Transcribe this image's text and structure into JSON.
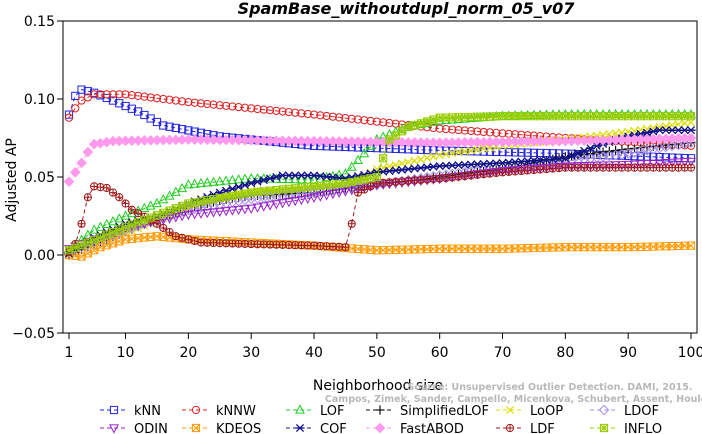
{
  "chart_data": {
    "type": "line",
    "title": "SpamBase_withoutdupl_norm_05_v07",
    "xlabel": "Neighborhood size",
    "ylabel": "Adjusted AP",
    "xlim": [
      1,
      100
    ],
    "ylim": [
      -0.05,
      0.15
    ],
    "x_ticks": [
      "1",
      "10",
      "20",
      "30",
      "40",
      "50",
      "60",
      "70",
      "80",
      "90",
      "100"
    ],
    "y_ticks": [
      "−0.05",
      "0.00",
      "0.05",
      "0.10",
      "0.15"
    ],
    "grid": false,
    "legend_position": "bottom",
    "watermark": [
      "Source: Unsupervised Outlier Detection. DAMI, 2015.",
      "Campos, Zimek, Sander, Campello, Micenkova, Schubert, Assent, Houle"
    ],
    "series": [
      {
        "name": "kNN",
        "color": "#2222dd",
        "marker": "square",
        "anchors": [
          [
            1,
            0.09
          ],
          [
            2,
            0.102
          ],
          [
            3,
            0.106
          ],
          [
            5,
            0.104
          ],
          [
            8,
            0.099
          ],
          [
            12,
            0.092
          ],
          [
            16,
            0.083
          ],
          [
            25,
            0.076
          ],
          [
            40,
            0.07
          ],
          [
            60,
            0.067
          ],
          [
            80,
            0.065
          ],
          [
            100,
            0.062
          ]
        ]
      },
      {
        "name": "kNNW",
        "color": "#dd2222",
        "marker": "circle",
        "anchors": [
          [
            1,
            0.088
          ],
          [
            2,
            0.094
          ],
          [
            3,
            0.099
          ],
          [
            5,
            0.103
          ],
          [
            10,
            0.103
          ],
          [
            20,
            0.098
          ],
          [
            40,
            0.09
          ],
          [
            60,
            0.081
          ],
          [
            80,
            0.075
          ],
          [
            100,
            0.07
          ]
        ]
      },
      {
        "name": "LOF",
        "color": "#22cc22",
        "marker": "triangle",
        "anchors": [
          [
            1,
            0.003
          ],
          [
            5,
            0.016
          ],
          [
            10,
            0.025
          ],
          [
            15,
            0.033
          ],
          [
            20,
            0.045
          ],
          [
            25,
            0.047
          ],
          [
            30,
            0.049
          ],
          [
            40,
            0.048
          ],
          [
            45,
            0.052
          ],
          [
            48,
            0.065
          ],
          [
            50,
            0.074
          ],
          [
            55,
            0.082
          ],
          [
            60,
            0.086
          ],
          [
            70,
            0.089
          ],
          [
            80,
            0.09
          ],
          [
            100,
            0.09
          ]
        ]
      },
      {
        "name": "SimplifiedLOF",
        "color": "#111111",
        "marker": "plus",
        "anchors": [
          [
            1,
            0.0
          ],
          [
            5,
            0.007
          ],
          [
            10,
            0.015
          ],
          [
            15,
            0.023
          ],
          [
            20,
            0.03
          ],
          [
            25,
            0.035
          ],
          [
            30,
            0.038
          ],
          [
            40,
            0.04
          ],
          [
            50,
            0.045
          ],
          [
            60,
            0.05
          ],
          [
            70,
            0.055
          ],
          [
            80,
            0.063
          ],
          [
            90,
            0.068
          ],
          [
            100,
            0.072
          ]
        ]
      },
      {
        "name": "LoOP",
        "color": "#dddd00",
        "marker": "x",
        "anchors": [
          [
            1,
            0.003
          ],
          [
            10,
            0.014
          ],
          [
            20,
            0.03
          ],
          [
            25,
            0.037
          ],
          [
            30,
            0.041
          ],
          [
            40,
            0.043
          ],
          [
            46,
            0.046
          ],
          [
            50,
            0.055
          ],
          [
            60,
            0.064
          ],
          [
            70,
            0.07
          ],
          [
            80,
            0.074
          ],
          [
            90,
            0.079
          ],
          [
            100,
            0.085
          ]
        ]
      },
      {
        "name": "LDOF",
        "color": "#a88ee8",
        "marker": "diamond",
        "anchors": [
          [
            1,
            0.002
          ],
          [
            10,
            0.016
          ],
          [
            20,
            0.029
          ],
          [
            30,
            0.036
          ],
          [
            40,
            0.04
          ],
          [
            50,
            0.045
          ],
          [
            60,
            0.051
          ],
          [
            70,
            0.056
          ],
          [
            80,
            0.06
          ],
          [
            90,
            0.065
          ],
          [
            100,
            0.072
          ]
        ]
      },
      {
        "name": "ODIN",
        "color": "#9922cc",
        "marker": "triangle-down",
        "anchors": [
          [
            1,
            0.004
          ],
          [
            10,
            0.018
          ],
          [
            20,
            0.026
          ],
          [
            30,
            0.03
          ],
          [
            40,
            0.037
          ],
          [
            50,
            0.045
          ],
          [
            60,
            0.049
          ],
          [
            70,
            0.054
          ],
          [
            80,
            0.057
          ],
          [
            90,
            0.058
          ],
          [
            100,
            0.06
          ]
        ]
      },
      {
        "name": "KDEOS",
        "color": "#ff9900",
        "marker": "square-x",
        "anchors": [
          [
            1,
            0.0
          ],
          [
            3,
            -0.001
          ],
          [
            6,
            0.005
          ],
          [
            10,
            0.01
          ],
          [
            15,
            0.012
          ],
          [
            20,
            0.01
          ],
          [
            25,
            0.009
          ],
          [
            30,
            0.008
          ],
          [
            40,
            0.006
          ],
          [
            50,
            0.003
          ],
          [
            60,
            0.004
          ],
          [
            70,
            0.004
          ],
          [
            80,
            0.005
          ],
          [
            90,
            0.005
          ],
          [
            100,
            0.006
          ]
        ]
      },
      {
        "name": "COF",
        "color": "#111188",
        "marker": "asterisk",
        "anchors": [
          [
            1,
            0.001
          ],
          [
            5,
            0.011
          ],
          [
            10,
            0.02
          ],
          [
            15,
            0.025
          ],
          [
            20,
            0.033
          ],
          [
            25,
            0.04
          ],
          [
            30,
            0.046
          ],
          [
            35,
            0.051
          ],
          [
            40,
            0.051
          ],
          [
            45,
            0.049
          ],
          [
            50,
            0.053
          ],
          [
            60,
            0.057
          ],
          [
            70,
            0.059
          ],
          [
            80,
            0.062
          ],
          [
            85,
            0.07
          ],
          [
            90,
            0.076
          ],
          [
            95,
            0.08
          ],
          [
            100,
            0.08
          ]
        ]
      },
      {
        "name": "FastABOD",
        "color": "#ff99ee",
        "marker": "diamond-filled",
        "anchors": [
          [
            1,
            0.047
          ],
          [
            2,
            0.053
          ],
          [
            3,
            0.059
          ],
          [
            4,
            0.066
          ],
          [
            5,
            0.071
          ],
          [
            8,
            0.073
          ],
          [
            20,
            0.074
          ],
          [
            40,
            0.073
          ],
          [
            60,
            0.072
          ],
          [
            80,
            0.073
          ],
          [
            100,
            0.075
          ]
        ]
      },
      {
        "name": "LDF",
        "color": "#a01818",
        "marker": "circle-plus",
        "anchors": [
          [
            1,
            0.002
          ],
          [
            2,
            0.007
          ],
          [
            3,
            0.02
          ],
          [
            4,
            0.037
          ],
          [
            5,
            0.044
          ],
          [
            7,
            0.043
          ],
          [
            9,
            0.037
          ],
          [
            11,
            0.029
          ],
          [
            15,
            0.02
          ],
          [
            18,
            0.012
          ],
          [
            22,
            0.008
          ],
          [
            30,
            0.007
          ],
          [
            40,
            0.006
          ],
          [
            45,
            0.005
          ],
          [
            46,
            0.02
          ],
          [
            47,
            0.04
          ],
          [
            50,
            0.046
          ],
          [
            60,
            0.049
          ],
          [
            70,
            0.053
          ],
          [
            80,
            0.056
          ],
          [
            90,
            0.056
          ],
          [
            100,
            0.056
          ]
        ]
      },
      {
        "name": "INFLO",
        "color": "#99cc00",
        "marker": "square-star",
        "anchors": [
          [
            1,
            0.003
          ],
          [
            10,
            0.018
          ],
          [
            20,
            0.033
          ],
          [
            30,
            0.04
          ],
          [
            40,
            0.044
          ],
          [
            45,
            0.046
          ],
          [
            50,
            0.05
          ],
          [
            52,
            0.074
          ],
          [
            55,
            0.082
          ],
          [
            60,
            0.088
          ],
          [
            70,
            0.089
          ],
          [
            80,
            0.089
          ],
          [
            100,
            0.089
          ]
        ]
      }
    ]
  }
}
